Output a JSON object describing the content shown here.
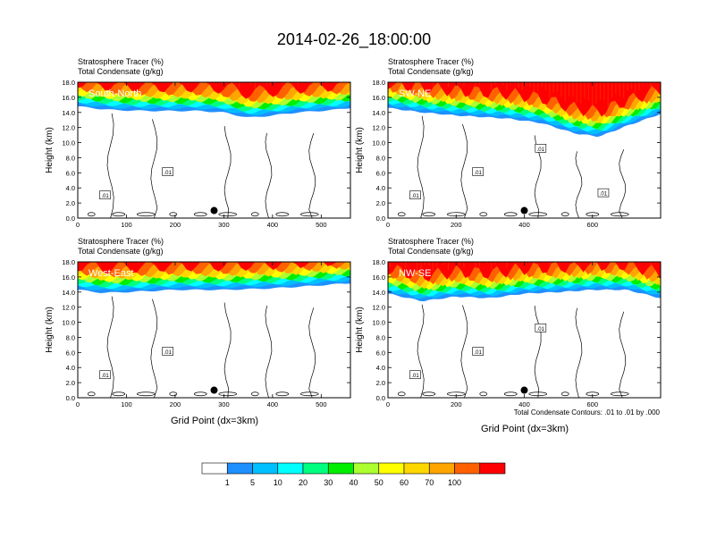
{
  "title": "2014-02-26_18:00:00",
  "cross_section_axis_label": "Grid Point (dx=3km)",
  "contour_note": "Total Condensate Contours: .01 to .01 by .000",
  "colorbar": {
    "labels": [
      "1",
      "5",
      "10",
      "20",
      "30",
      "40",
      "50",
      "60",
      "70",
      "100"
    ],
    "colors": [
      "#ffffff",
      "#1e90ff",
      "#00bfff",
      "#00ffff",
      "#00ff7f",
      "#00ee00",
      "#adff2f",
      "#ffff00",
      "#ffd700",
      "#ffa500",
      "#ff6100",
      "#ff0000"
    ]
  },
  "chart_data": [
    {
      "type": "heatmap",
      "name": "South-North",
      "header1": "Stratosphere Tracer   (%)",
      "header2": "Total Condensate   (g/kg)",
      "ylabel": "Height (km)",
      "xlabel": "",
      "xlim": [
        0,
        560
      ],
      "ylim": [
        0,
        18
      ],
      "x_ticks": [
        "0",
        "100",
        "200",
        "300",
        "400",
        "500"
      ],
      "y_ticks": [
        "0.0",
        "2.0",
        "4.0",
        "6.0",
        "8.0",
        "10.0",
        "12.0",
        "14.0",
        "16.0",
        "18.0"
      ],
      "contour_labels": [
        ".01",
        ".01"
      ],
      "profile": [
        [
          0,
          14.8
        ],
        [
          40,
          14.5
        ],
        [
          80,
          14.3
        ],
        [
          150,
          14.2
        ],
        [
          250,
          14.2
        ],
        [
          300,
          14.0
        ],
        [
          350,
          13.3
        ],
        [
          400,
          13.6
        ],
        [
          450,
          14.0
        ],
        [
          520,
          14.3
        ],
        [
          560,
          14.6
        ]
      ],
      "marker": {
        "x": 280,
        "y": 1.0
      }
    },
    {
      "type": "heatmap",
      "name": "SW-NE",
      "header1": "Stratosphere Tracer   (%)",
      "header2": "Total Condensate   (g/kg)",
      "ylabel": "Height (km)",
      "xlabel": "",
      "xlim": [
        0,
        800
      ],
      "ylim": [
        0,
        18
      ],
      "x_ticks": [
        "0",
        "200",
        "400",
        "600"
      ],
      "y_ticks": [
        "0.0",
        "2.0",
        "4.0",
        "6.0",
        "8.0",
        "10.0",
        "12.0",
        "14.0",
        "16.0",
        "18.0"
      ],
      "contour_labels": [
        ".01",
        ".01",
        ".01",
        ".01"
      ],
      "profile": [
        [
          0,
          14.6
        ],
        [
          100,
          14.0
        ],
        [
          200,
          13.6
        ],
        [
          350,
          13.2
        ],
        [
          450,
          12.6
        ],
        [
          550,
          11.2
        ],
        [
          620,
          10.8
        ],
        [
          700,
          12.2
        ],
        [
          800,
          13.8
        ]
      ],
      "marker": {
        "x": 400,
        "y": 1.0
      }
    },
    {
      "type": "heatmap",
      "name": "West-East",
      "header1": "Stratosphere Tracer   (%)",
      "header2": "Total Condensate   (g/kg)",
      "ylabel": "Height (km)",
      "xlabel": "",
      "xlim": [
        0,
        560
      ],
      "ylim": [
        0,
        18
      ],
      "x_ticks": [
        "0",
        "100",
        "200",
        "300",
        "400",
        "500"
      ],
      "y_ticks": [
        "0.0",
        "2.0",
        "4.0",
        "6.0",
        "8.0",
        "10.0",
        "12.0",
        "14.0",
        "16.0",
        "18.0"
      ],
      "contour_labels": [
        ".01",
        ".01"
      ],
      "profile": [
        [
          0,
          14.3
        ],
        [
          50,
          13.9
        ],
        [
          100,
          14.0
        ],
        [
          200,
          14.3
        ],
        [
          300,
          14.3
        ],
        [
          400,
          14.5
        ],
        [
          500,
          14.9
        ],
        [
          560,
          15.2
        ]
      ],
      "marker": {
        "x": 280,
        "y": 1.0
      }
    },
    {
      "type": "heatmap",
      "name": "NW-SE",
      "header1": "Stratosphere Tracer   (%)",
      "header2": "Total Condensate   (g/kg)",
      "ylabel": "Height (km)",
      "xlabel": "",
      "xlim": [
        0,
        800
      ],
      "ylim": [
        0,
        18
      ],
      "x_ticks": [
        "0",
        "200",
        "400",
        "600"
      ],
      "y_ticks": [
        "0.0",
        "2.0",
        "4.0",
        "6.0",
        "8.0",
        "10.0",
        "12.0",
        "14.0",
        "16.0",
        "18.0"
      ],
      "contour_labels": [
        ".01",
        ".01",
        ".01"
      ],
      "profile": [
        [
          0,
          13.8
        ],
        [
          100,
          12.8
        ],
        [
          200,
          13.4
        ],
        [
          300,
          13.2
        ],
        [
          400,
          13.8
        ],
        [
          500,
          14.0
        ],
        [
          600,
          14.3
        ],
        [
          700,
          14.3
        ],
        [
          800,
          13.2
        ]
      ],
      "marker": {
        "x": 400,
        "y": 1.0
      }
    }
  ]
}
